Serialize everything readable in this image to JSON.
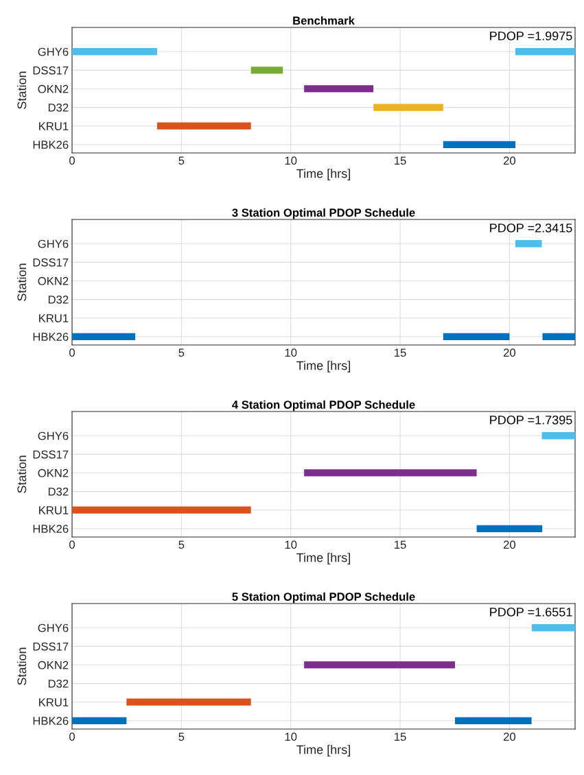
{
  "chart_data": [
    {
      "type": "bar",
      "orientation": "horizontal",
      "title": "Benchmark",
      "xlabel": "Time [hrs]",
      "ylabel": "Station",
      "categories": [
        "GHY6",
        "DSS17",
        "OKN2",
        "D32",
        "KRU1",
        "HBK26"
      ],
      "xlim": [
        0,
        23
      ],
      "xticks": [
        0,
        5,
        10,
        15,
        20
      ],
      "grid": true,
      "annotations": [
        "PDOP =1.9975"
      ],
      "series": [
        {
          "base": [
            0,
            8.18,
            10.61,
            13.78,
            3.89,
            16.97
          ],
          "values": [
            3.89,
            1.46,
            3.17,
            3.19,
            4.29,
            3.3
          ],
          "colors": [
            "#4dbeee",
            "#77ac30",
            "#7e2f8e",
            "#edb120",
            "#d95319",
            "#0072bd"
          ]
        },
        {
          "base": [
            20.27,
            null,
            null,
            null,
            null,
            null
          ],
          "values": [
            2.73,
            null,
            null,
            null,
            null,
            null
          ],
          "colors": [
            "#4dbeee",
            "#77ac30",
            "#7e2f8e",
            "#edb120",
            "#d95319",
            "#0072bd"
          ]
        }
      ]
    },
    {
      "type": "bar",
      "orientation": "horizontal",
      "title": "3 Station Optimal PDOP Schedule",
      "xlabel": "Time [hrs]",
      "ylabel": "Station",
      "categories": [
        "GHY6",
        "DSS17",
        "OKN2",
        "D32",
        "KRU1",
        "HBK26"
      ],
      "xlim": [
        0,
        23
      ],
      "xticks": [
        0,
        5,
        10,
        15,
        20
      ],
      "grid": true,
      "annotations": [
        "PDOP =2.3415"
      ],
      "series": [
        {
          "base": [
            20.27,
            null,
            null,
            null,
            null,
            0
          ],
          "values": [
            1.21,
            null,
            null,
            null,
            null,
            2.89
          ],
          "colors": [
            "#4dbeee",
            "#77ac30",
            "#7e2f8e",
            "#edb120",
            "#d95319",
            "#0072bd"
          ]
        },
        {
          "base": [
            null,
            null,
            null,
            null,
            null,
            16.97
          ],
          "values": [
            null,
            null,
            null,
            null,
            null,
            3.03
          ],
          "colors": [
            "#4dbeee",
            "#77ac30",
            "#7e2f8e",
            "#edb120",
            "#d95319",
            "#0072bd"
          ]
        },
        {
          "base": [
            null,
            null,
            null,
            null,
            null,
            21.51
          ],
          "values": [
            null,
            null,
            null,
            null,
            null,
            1.49
          ],
          "colors": [
            "#4dbeee",
            "#77ac30",
            "#7e2f8e",
            "#edb120",
            "#d95319",
            "#0072bd"
          ]
        }
      ]
    },
    {
      "type": "bar",
      "orientation": "horizontal",
      "title": "4 Station Optimal PDOP Schedule",
      "xlabel": "Time [hrs]",
      "ylabel": "Station",
      "categories": [
        "GHY6",
        "DSS17",
        "OKN2",
        "D32",
        "KRU1",
        "HBK26"
      ],
      "xlim": [
        0,
        23
      ],
      "xticks": [
        0,
        5,
        10,
        15,
        20
      ],
      "grid": true,
      "annotations": [
        "PDOP =1.7395"
      ],
      "series": [
        {
          "base": [
            21.48,
            null,
            10.61,
            null,
            0,
            18.5
          ],
          "values": [
            1.52,
            null,
            7.89,
            null,
            8.18,
            3.0
          ],
          "colors": [
            "#4dbeee",
            "#77ac30",
            "#7e2f8e",
            "#edb120",
            "#d95319",
            "#0072bd"
          ]
        }
      ]
    },
    {
      "type": "bar",
      "orientation": "horizontal",
      "title": "5 Station Optimal PDOP Schedule",
      "xlabel": "Time [hrs]",
      "ylabel": "Station",
      "categories": [
        "GHY6",
        "DSS17",
        "OKN2",
        "D32",
        "KRU1",
        "HBK26"
      ],
      "xlim": [
        0,
        23
      ],
      "xticks": [
        0,
        5,
        10,
        15,
        20
      ],
      "grid": true,
      "annotations": [
        "PDOP =1.6551"
      ],
      "series": [
        {
          "base": [
            21.02,
            null,
            10.61,
            null,
            2.49,
            0
          ],
          "values": [
            1.98,
            null,
            6.9,
            null,
            5.69,
            2.49
          ],
          "colors": [
            "#4dbeee",
            "#77ac30",
            "#7e2f8e",
            "#edb120",
            "#d95319",
            "#0072bd"
          ]
        },
        {
          "base": [
            null,
            null,
            null,
            null,
            null,
            17.51
          ],
          "values": [
            null,
            null,
            null,
            null,
            null,
            3.5
          ],
          "colors": [
            "#4dbeee",
            "#77ac30",
            "#7e2f8e",
            "#edb120",
            "#d95319",
            "#0072bd"
          ]
        }
      ]
    }
  ]
}
